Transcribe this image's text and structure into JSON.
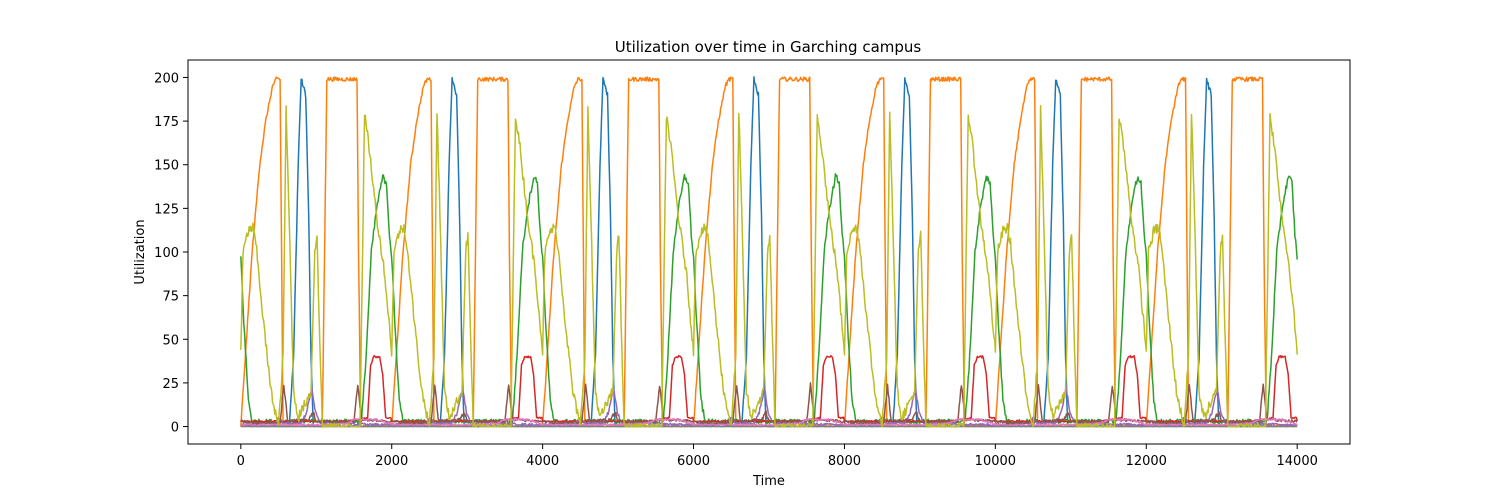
{
  "chart_data": {
    "type": "line",
    "title": "Utilization over time in Garching campus",
    "xlabel": "Time",
    "ylabel": "Utilization",
    "xlim": [
      -700,
      14700
    ],
    "ylim": [
      -10,
      210
    ],
    "xticks": [
      0,
      2000,
      4000,
      6000,
      8000,
      10000,
      12000,
      14000
    ],
    "yticks": [
      0,
      25,
      50,
      75,
      100,
      125,
      150,
      175,
      200
    ],
    "xtick_labels": [
      "0",
      "2000",
      "4000",
      "6000",
      "8000",
      "10000",
      "12000",
      "14000"
    ],
    "ytick_labels": [
      "0",
      "25",
      "50",
      "75",
      "100",
      "125",
      "150",
      "175",
      "200"
    ],
    "grid": false,
    "legend": "none",
    "period": 2000,
    "x_end": 14000,
    "series": [
      {
        "color": "#1f77b4",
        "cycle_points": [
          [
            0,
            0
          ],
          [
            640,
            0
          ],
          [
            700,
            40
          ],
          [
            760,
            150
          ],
          [
            800,
            199
          ],
          [
            860,
            190
          ],
          [
            900,
            120
          ],
          [
            930,
            40
          ],
          [
            960,
            0
          ],
          [
            2000,
            0
          ]
        ],
        "noise": 1.5
      },
      {
        "color": "#ff7f0e",
        "cycle_points": [
          [
            0,
            0
          ],
          [
            60,
            40
          ],
          [
            150,
            100
          ],
          [
            250,
            150
          ],
          [
            330,
            175
          ],
          [
            420,
            195
          ],
          [
            470,
            199
          ],
          [
            520,
            199
          ],
          [
            540,
            100
          ],
          [
            560,
            0
          ],
          [
            1080,
            0
          ],
          [
            1110,
            100
          ],
          [
            1140,
            199
          ],
          [
            1540,
            199
          ],
          [
            1560,
            100
          ],
          [
            1590,
            0
          ],
          [
            2000,
            0
          ]
        ],
        "noise": 1.2
      },
      {
        "color": "#2ca02c",
        "cycle_points": [
          [
            0,
            97
          ],
          [
            40,
            60
          ],
          [
            100,
            15
          ],
          [
            150,
            3
          ],
          [
            1600,
            3
          ],
          [
            1660,
            40
          ],
          [
            1730,
            100
          ],
          [
            1800,
            125
          ],
          [
            1880,
            143
          ],
          [
            1930,
            140
          ],
          [
            1970,
            110
          ],
          [
            2000,
            97
          ]
        ],
        "noise": 2.0
      },
      {
        "color": "#d62728",
        "cycle_points": [
          [
            0,
            3
          ],
          [
            1400,
            3
          ],
          [
            1680,
            5
          ],
          [
            1720,
            35
          ],
          [
            1760,
            40
          ],
          [
            1840,
            40
          ],
          [
            1880,
            30
          ],
          [
            1920,
            5
          ],
          [
            1990,
            5
          ],
          [
            2000,
            3
          ]
        ],
        "noise": 0.6
      },
      {
        "color": "#9467bd",
        "cycle_points": [
          [
            0,
            1
          ],
          [
            450,
            2
          ],
          [
            500,
            5
          ],
          [
            560,
            2
          ],
          [
            800,
            2
          ],
          [
            870,
            8
          ],
          [
            940,
            22
          ],
          [
            990,
            8
          ],
          [
            1050,
            2
          ],
          [
            2000,
            1
          ]
        ],
        "noise": 1.0
      },
      {
        "color": "#8c564b",
        "cycle_points": [
          [
            0,
            3
          ],
          [
            200,
            2
          ],
          [
            520,
            2
          ],
          [
            570,
            24
          ],
          [
            620,
            3
          ],
          [
            900,
            4
          ],
          [
            960,
            8
          ],
          [
            1000,
            3
          ],
          [
            1500,
            3
          ],
          [
            1550,
            24
          ],
          [
            1600,
            4
          ],
          [
            2000,
            3
          ]
        ],
        "noise": 1.2
      },
      {
        "color": "#e377c2",
        "cycle_points": [
          [
            0,
            1
          ],
          [
            1200,
            1
          ],
          [
            1400,
            2
          ],
          [
            1500,
            4
          ],
          [
            1800,
            4
          ],
          [
            1950,
            2
          ],
          [
            2000,
            1
          ]
        ],
        "noise": 0.8
      },
      {
        "color": "#7f7f7f",
        "cycle_points": [
          [
            0,
            0
          ],
          [
            2000,
            0
          ]
        ],
        "noise": 0
      },
      {
        "color": "#bcbd22",
        "cycle_points": [
          [
            0,
            43
          ],
          [
            30,
            100
          ],
          [
            100,
            112
          ],
          [
            160,
            114
          ],
          [
            200,
            105
          ],
          [
            300,
            60
          ],
          [
            400,
            20
          ],
          [
            500,
            0
          ],
          [
            560,
            40
          ],
          [
            600,
            181
          ],
          [
            640,
            120
          ],
          [
            700,
            20
          ],
          [
            760,
            5
          ],
          [
            930,
            20
          ],
          [
            980,
            100
          ],
          [
            1010,
            110
          ],
          [
            1040,
            60
          ],
          [
            1080,
            0
          ],
          [
            1580,
            0
          ],
          [
            1620,
            120
          ],
          [
            1640,
            179
          ],
          [
            1700,
            160
          ],
          [
            1800,
            120
          ],
          [
            1900,
            90
          ],
          [
            2000,
            43
          ]
        ],
        "noise": 3.0
      }
    ]
  }
}
